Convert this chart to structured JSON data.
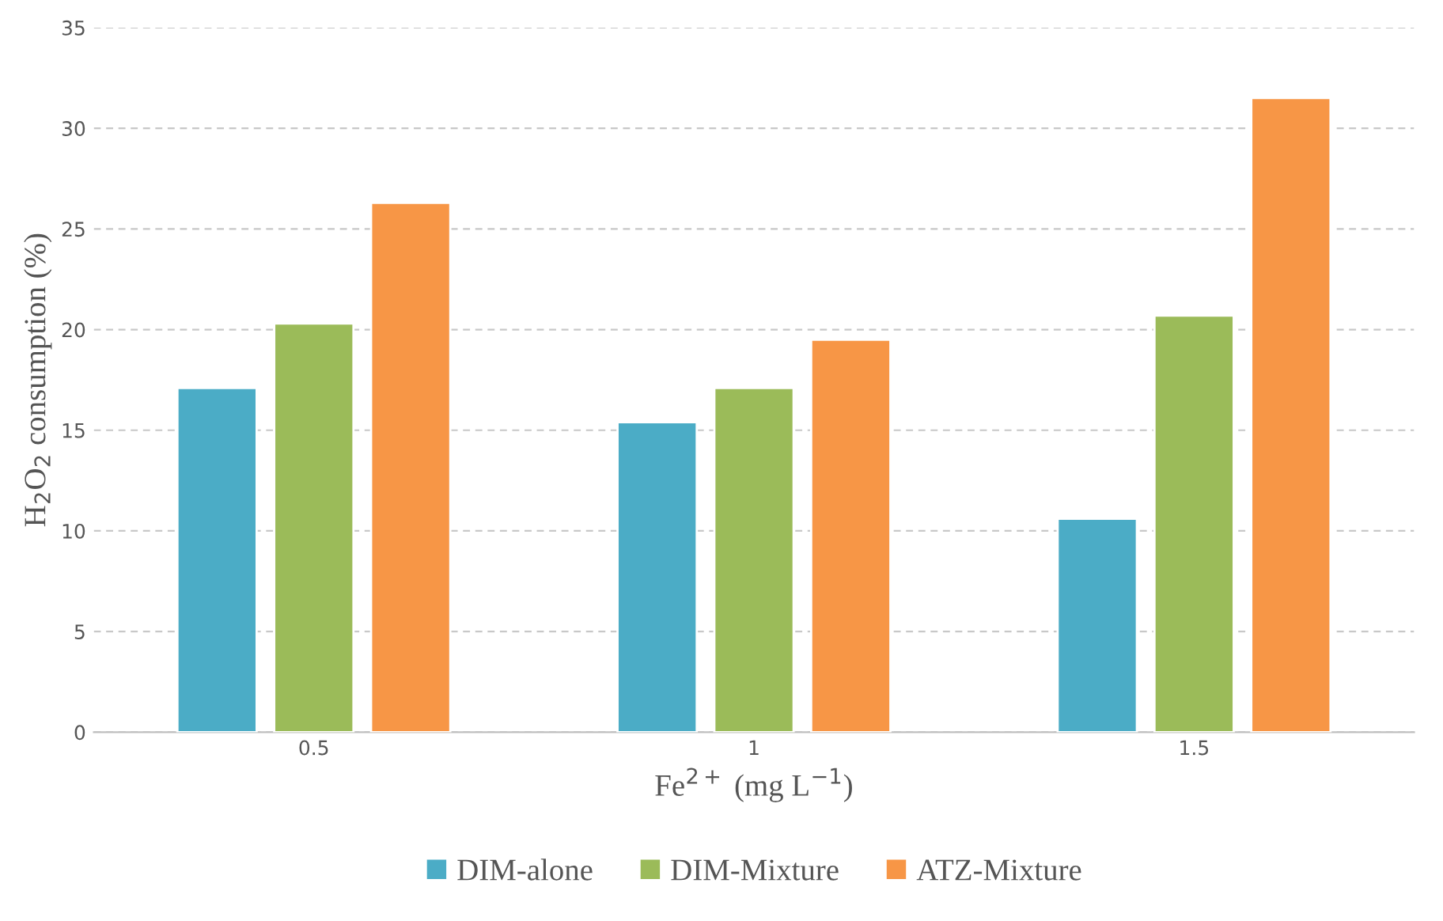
{
  "chart_data": {
    "type": "bar",
    "xlabel": "Fe$^{2+}$ (mg L$^{−1}$)",
    "ylabel": "H$_{2}$O$_{2}$ consumption (%)",
    "categories": [
      "0.5",
      "1",
      "1.5"
    ],
    "series": [
      {
        "name": "DIM-alone",
        "color": "#4bacc6",
        "values": [
          17.1,
          15.4,
          10.6
        ]
      },
      {
        "name": "DIM-Mixture",
        "color": "#9bbb59",
        "values": [
          20.3,
          17.1,
          20.7
        ]
      },
      {
        "name": "ATZ-Mixture",
        "color": "#f79646",
        "values": [
          26.3,
          19.5,
          31.5
        ]
      }
    ],
    "ylim": [
      0,
      35
    ],
    "yticks": [
      0,
      5,
      10,
      15,
      20,
      25,
      30,
      35
    ],
    "grid": "y",
    "legend": "bottom"
  }
}
